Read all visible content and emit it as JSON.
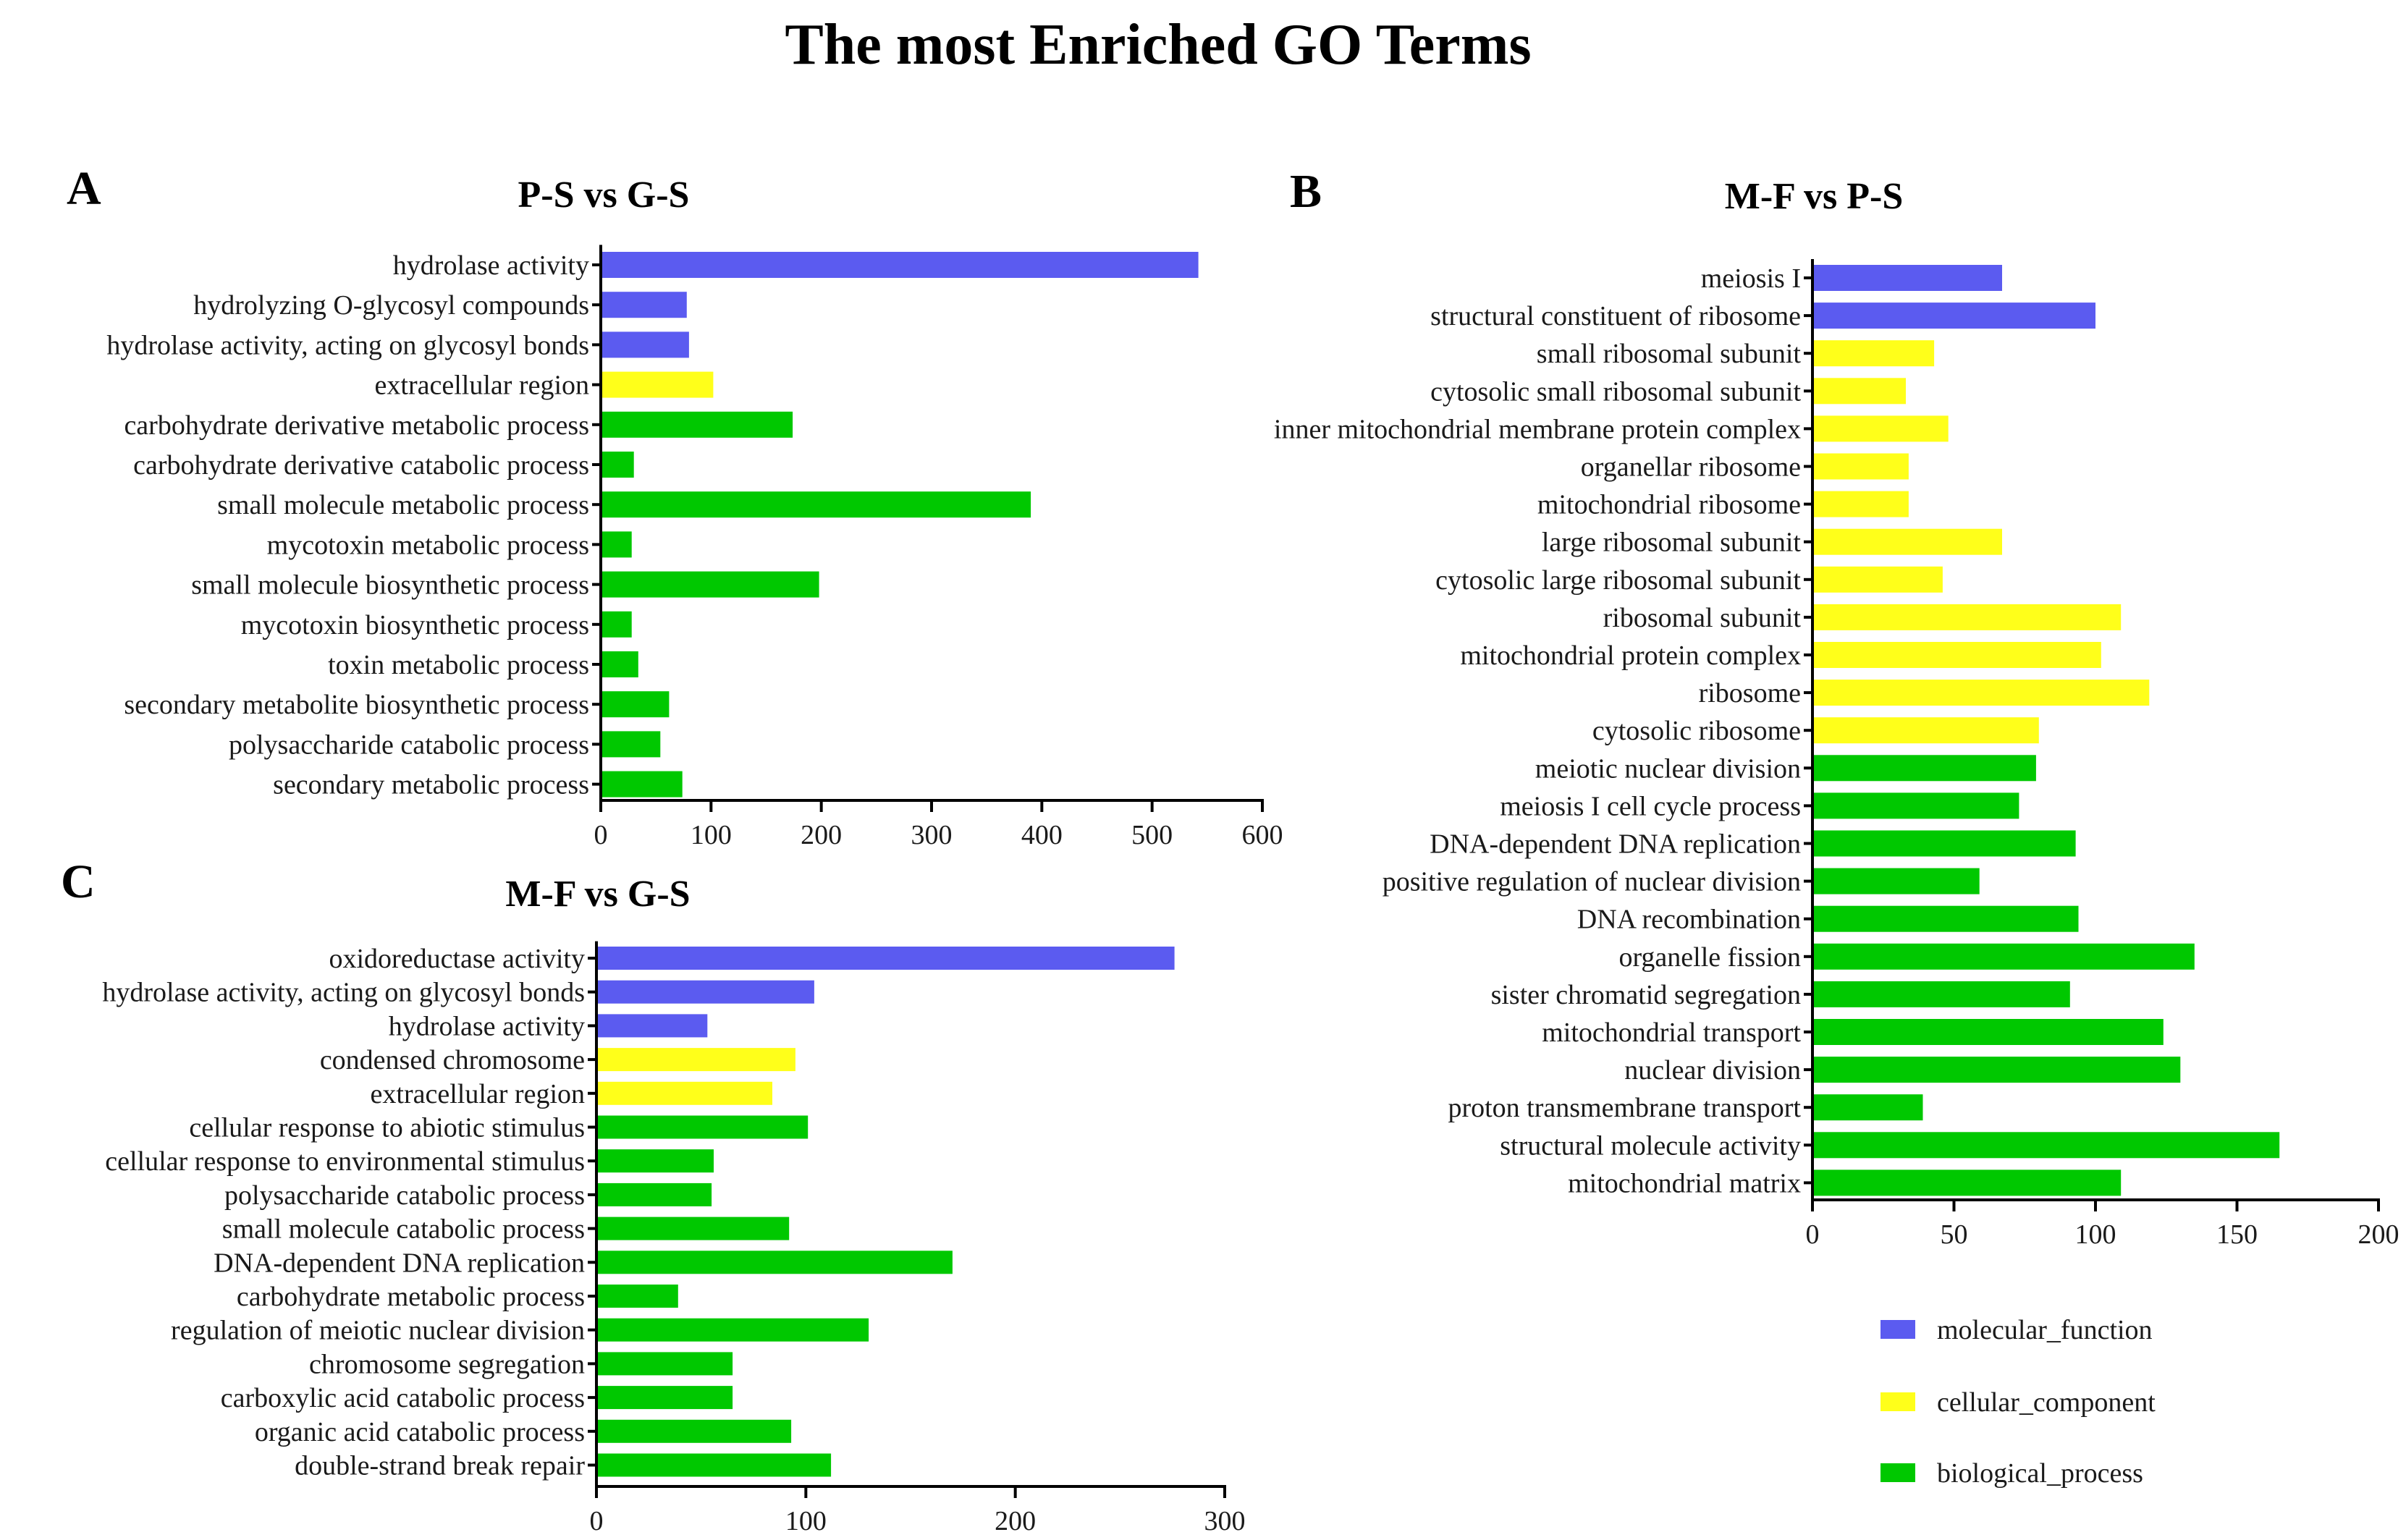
{
  "title": "The most Enriched GO Terms",
  "colors": {
    "molecular_function": "#5b5bf0",
    "cellular_component": "#ffff1a",
    "biological_process": "#00c800",
    "axis": "#000000",
    "text": "#1a1a1a"
  },
  "legend": [
    {
      "key": "molecular_function",
      "label": "molecular_function"
    },
    {
      "key": "cellular_component",
      "label": "cellular_component"
    },
    {
      "key": "biological_process",
      "label": "biological_process"
    }
  ],
  "chart_data": [
    {
      "panel": "A",
      "type": "bar",
      "orientation": "horizontal",
      "title": "P-S vs G-S",
      "xlim": [
        0,
        600
      ],
      "xticks": [
        0,
        100,
        200,
        300,
        400,
        500,
        600
      ],
      "categories": [
        "hydrolase activity",
        "hydrolyzing O-glycosyl compounds",
        "hydrolase activity, acting on glycosyl bonds",
        "extracellular region",
        "carbohydrate derivative metabolic process",
        "carbohydrate derivative catabolic process",
        "small molecule metabolic process",
        "mycotoxin metabolic process",
        "small molecule biosynthetic process",
        "mycotoxin biosynthetic process",
        "toxin metabolic process",
        "secondary metabolite biosynthetic process",
        "polysaccharide catabolic process",
        "secondary metabolic process"
      ],
      "values": [
        542,
        78,
        80,
        102,
        174,
        30,
        390,
        28,
        198,
        28,
        34,
        62,
        54,
        74
      ],
      "groups": [
        "molecular_function",
        "molecular_function",
        "molecular_function",
        "cellular_component",
        "biological_process",
        "biological_process",
        "biological_process",
        "biological_process",
        "biological_process",
        "biological_process",
        "biological_process",
        "biological_process",
        "biological_process",
        "biological_process"
      ]
    },
    {
      "panel": "B",
      "type": "bar",
      "orientation": "horizontal",
      "title": "M-F vs P-S",
      "xlim": [
        0,
        200
      ],
      "xticks": [
        0,
        50,
        100,
        150,
        200
      ],
      "categories": [
        "meiosis I",
        "structural constituent of ribosome",
        "small ribosomal subunit",
        "cytosolic small ribosomal subunit",
        "inner mitochondrial membrane protein complex",
        "organellar ribosome",
        "mitochondrial ribosome",
        "large ribosomal subunit",
        "cytosolic large ribosomal subunit",
        "ribosomal subunit",
        "mitochondrial protein complex",
        "ribosome",
        "cytosolic ribosome",
        "meiotic nuclear division",
        "meiosis I cell cycle process",
        "DNA-dependent DNA replication",
        "positive regulation of nuclear division",
        "DNA recombination",
        "organelle fission",
        "sister chromatid segregation",
        "mitochondrial transport",
        "nuclear division",
        "proton transmembrane transport",
        "structural molecule activity",
        "mitochondrial matrix"
      ],
      "values": [
        67,
        100,
        43,
        33,
        48,
        34,
        34,
        67,
        46,
        109,
        102,
        119,
        80,
        79,
        73,
        93,
        59,
        94,
        135,
        91,
        124,
        130,
        39,
        165,
        109
      ],
      "groups": [
        "molecular_function",
        "molecular_function",
        "cellular_component",
        "cellular_component",
        "cellular_component",
        "cellular_component",
        "cellular_component",
        "cellular_component",
        "cellular_component",
        "cellular_component",
        "cellular_component",
        "cellular_component",
        "cellular_component",
        "biological_process",
        "biological_process",
        "biological_process",
        "biological_process",
        "biological_process",
        "biological_process",
        "biological_process",
        "biological_process",
        "biological_process",
        "biological_process",
        "biological_process",
        "biological_process"
      ]
    },
    {
      "panel": "C",
      "type": "bar",
      "orientation": "horizontal",
      "title": "M-F vs G-S",
      "xlim": [
        0,
        300
      ],
      "xticks": [
        0,
        100,
        200,
        300
      ],
      "categories": [
        "oxidoreductase activity",
        "hydrolase activity, acting on glycosyl bonds",
        "hydrolase activity",
        "condensed chromosome",
        "extracellular region",
        "cellular response to abiotic stimulus",
        "cellular response to environmental stimulus",
        "polysaccharide catabolic process",
        "small molecule catabolic process",
        "DNA-dependent DNA replication",
        "carbohydrate metabolic process",
        "regulation of meiotic nuclear division",
        "chromosome segregation",
        "carboxylic acid catabolic process",
        "organic acid catabolic process",
        "double-strand break repair"
      ],
      "values": [
        276,
        104,
        53,
        95,
        84,
        101,
        56,
        55,
        92,
        170,
        39,
        130,
        65,
        65,
        93,
        112
      ],
      "groups": [
        "molecular_function",
        "molecular_function",
        "molecular_function",
        "cellular_component",
        "cellular_component",
        "biological_process",
        "biological_process",
        "biological_process",
        "biological_process",
        "biological_process",
        "biological_process",
        "biological_process",
        "biological_process",
        "biological_process",
        "biological_process",
        "biological_process"
      ]
    }
  ]
}
